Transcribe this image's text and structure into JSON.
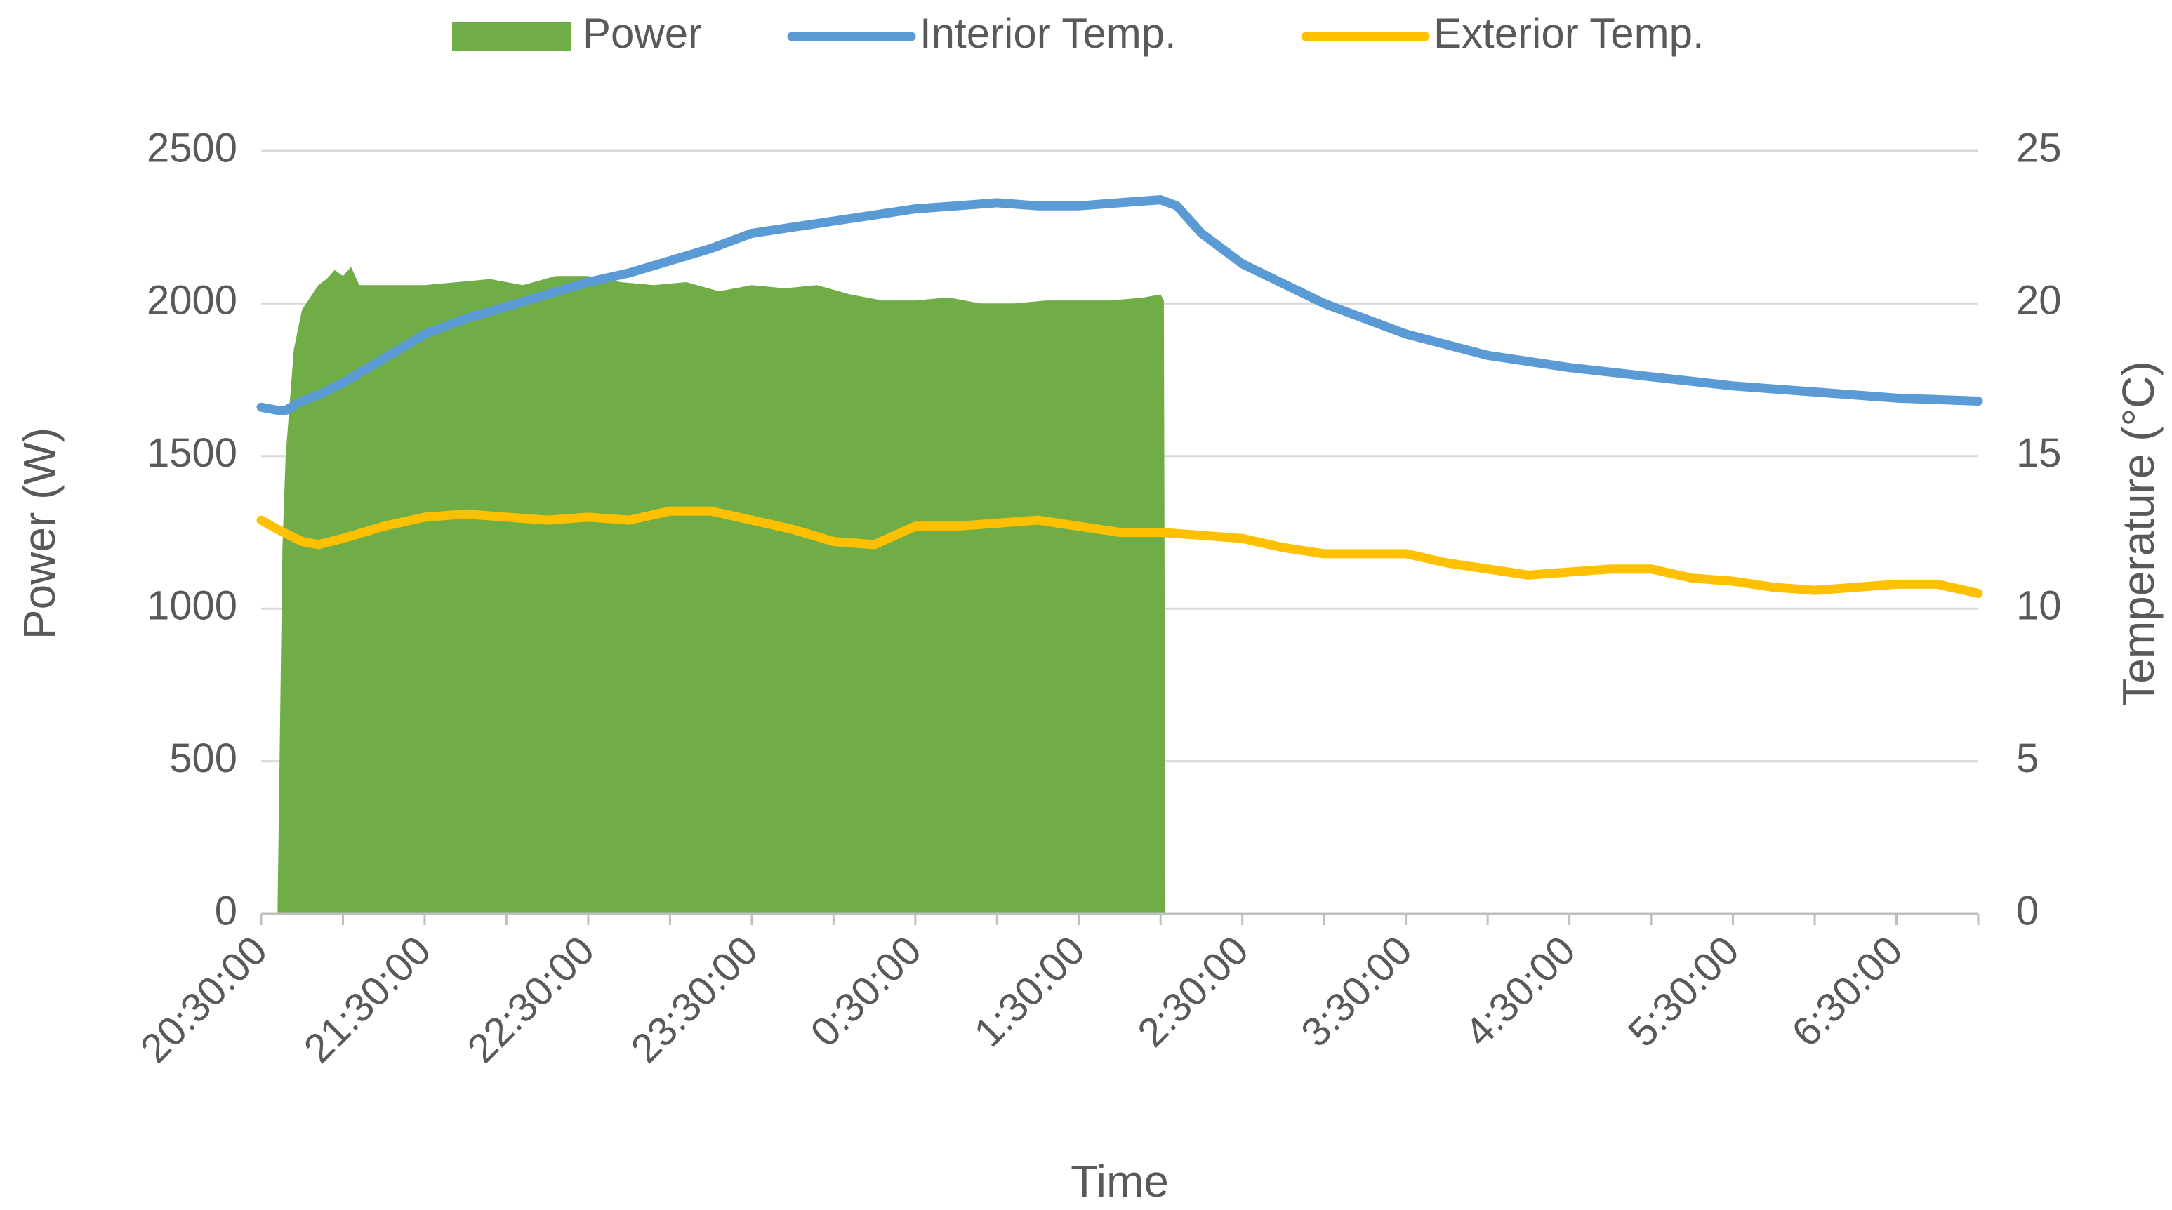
{
  "chart_data": {
    "type": "area+line",
    "title": "",
    "xlabel": "Time",
    "ylabel_left": "Power (W)",
    "ylabel_right": "Temperature (°C)",
    "ylim_left": [
      0,
      2500
    ],
    "ylim_right": [
      0,
      25
    ],
    "left_ticks": [
      "0",
      "500",
      "1000",
      "1500",
      "2000",
      "2500"
    ],
    "right_ticks": [
      "0",
      "5",
      "10",
      "15",
      "20",
      "25"
    ],
    "x_tick_labels": [
      "20:30:00",
      "21:30:00",
      "22:30:00",
      "23:30:00",
      "0:30:00",
      "1:30:00",
      "2:30:00",
      "3:30:00",
      "4:30:00",
      "5:30:00",
      "6:30:00"
    ],
    "x_hours_range": [
      0,
      10.5
    ],
    "grid": true,
    "legend_position": "top",
    "series": [
      {
        "name": "Power",
        "kind": "area",
        "axis": "left",
        "color": "#70ad47",
        "x_hours": [
          0.1,
          0.13,
          0.15,
          0.2,
          0.25,
          0.3,
          0.35,
          0.4,
          0.45,
          0.5,
          0.55,
          0.6,
          0.7,
          0.8,
          1.0,
          1.2,
          1.4,
          1.6,
          1.8,
          2.0,
          2.2,
          2.4,
          2.6,
          2.8,
          3.0,
          3.2,
          3.4,
          3.6,
          3.8,
          4.0,
          4.2,
          4.4,
          4.6,
          4.8,
          5.0,
          5.2,
          5.4,
          5.5,
          5.52,
          5.53
        ],
        "values": [
          0,
          1200,
          1500,
          1850,
          1980,
          2020,
          2060,
          2080,
          2110,
          2090,
          2120,
          2060,
          2060,
          2060,
          2060,
          2070,
          2080,
          2060,
          2090,
          2090,
          2070,
          2060,
          2070,
          2040,
          2060,
          2050,
          2060,
          2030,
          2010,
          2010,
          2020,
          2000,
          2000,
          2010,
          2010,
          2010,
          2020,
          2030,
          2010,
          0
        ]
      },
      {
        "name": "Interior Temp.",
        "kind": "line",
        "axis": "right",
        "color": "#5b9bd5",
        "x_hours": [
          0,
          0.1,
          0.15,
          0.25,
          0.35,
          0.5,
          0.75,
          1.0,
          1.25,
          1.5,
          1.75,
          2.0,
          2.25,
          2.5,
          2.75,
          3.0,
          3.25,
          3.5,
          3.75,
          4.0,
          4.25,
          4.5,
          4.75,
          5.0,
          5.25,
          5.5,
          5.6,
          5.75,
          6.0,
          6.5,
          7.0,
          7.5,
          8.0,
          8.5,
          9.0,
          9.5,
          10.0,
          10.5
        ],
        "values": [
          16.6,
          16.5,
          16.5,
          16.8,
          17.0,
          17.4,
          18.2,
          19.0,
          19.5,
          19.9,
          20.3,
          20.7,
          21.0,
          21.4,
          21.8,
          22.3,
          22.5,
          22.7,
          22.9,
          23.1,
          23.2,
          23.3,
          23.2,
          23.2,
          23.3,
          23.4,
          23.2,
          22.3,
          21.3,
          20.0,
          19.0,
          18.3,
          17.9,
          17.6,
          17.3,
          17.1,
          16.9,
          16.8
        ]
      },
      {
        "name": "Exterior Temp.",
        "kind": "line",
        "axis": "right",
        "color": "#ffc000",
        "x_hours": [
          0,
          0.1,
          0.25,
          0.35,
          0.5,
          0.75,
          1.0,
          1.25,
          1.5,
          1.75,
          2.0,
          2.25,
          2.5,
          2.75,
          3.0,
          3.25,
          3.5,
          3.75,
          4.0,
          4.25,
          4.5,
          4.75,
          5.0,
          5.25,
          5.5,
          5.75,
          6.0,
          6.25,
          6.5,
          7.0,
          7.25,
          7.5,
          7.75,
          8.0,
          8.25,
          8.5,
          8.75,
          9.0,
          9.25,
          9.5,
          9.75,
          10.0,
          10.25,
          10.5
        ],
        "values": [
          12.9,
          12.6,
          12.2,
          12.1,
          12.3,
          12.7,
          13.0,
          13.1,
          13.0,
          12.9,
          13.0,
          12.9,
          13.2,
          13.2,
          12.9,
          12.6,
          12.2,
          12.1,
          12.7,
          12.7,
          12.8,
          12.9,
          12.7,
          12.5,
          12.5,
          12.4,
          12.3,
          12.0,
          11.8,
          11.8,
          11.5,
          11.3,
          11.1,
          11.2,
          11.3,
          11.3,
          11.0,
          10.9,
          10.7,
          10.6,
          10.7,
          10.8,
          10.8,
          10.5
        ]
      }
    ]
  }
}
